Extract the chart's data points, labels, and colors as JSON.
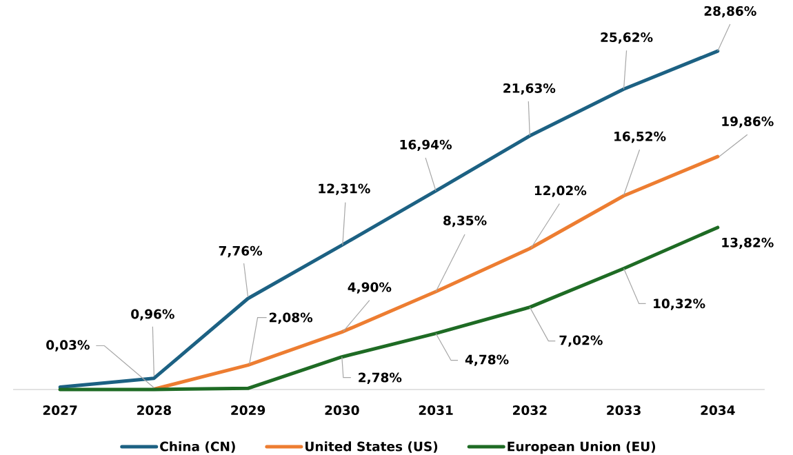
{
  "chart_data": {
    "type": "line",
    "categories": [
      "2027",
      "2028",
      "2029",
      "2030",
      "2031",
      "2032",
      "2033",
      "2034"
    ],
    "series": [
      {
        "name": "China (CN)",
        "color": "#1c6183",
        "values": [
          0.2,
          0.96,
          7.76,
          12.31,
          16.94,
          21.63,
          25.62,
          28.86
        ],
        "value_labels": [
          null,
          "0,96%",
          "7,76%",
          "12,31%",
          "16,94%",
          "21,63%",
          "25,62%",
          "28,86%"
        ]
      },
      {
        "name": "United States (US)",
        "color": "#ed7d31",
        "values": [
          null,
          0.03,
          2.08,
          4.9,
          8.35,
          12.02,
          16.52,
          19.86
        ],
        "value_labels": [
          null,
          "0,03%",
          "2,08%",
          "4,90%",
          "8,35%",
          "12,02%",
          "16,52%",
          "19,86%"
        ]
      },
      {
        "name": "European Union (EU)",
        "color": "#1e6b24",
        "values": [
          0,
          0,
          0.1,
          2.78,
          4.78,
          7.02,
          10.32,
          13.82
        ],
        "value_labels": [
          null,
          null,
          null,
          "2,78%",
          "4,78%",
          "7,02%",
          "10,32%",
          "13,82%"
        ]
      }
    ],
    "legend": "bottom",
    "tick_labels": "x",
    "line_style": "solid"
  }
}
